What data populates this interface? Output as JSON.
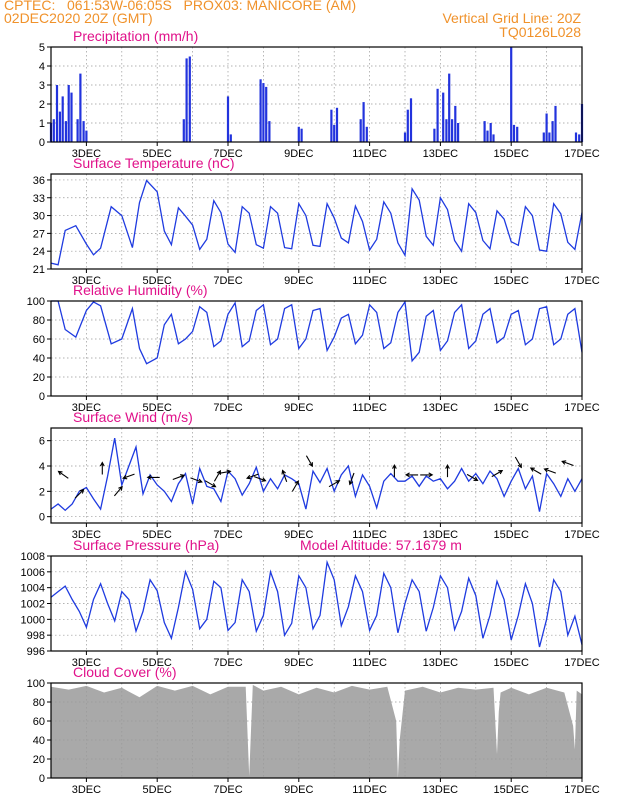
{
  "header": {
    "line1_left": "CPTEC:   061:53W-06:05S   PROX03: MANICORE (AM)",
    "line2_left": "02DEC2020 20Z (GMT)",
    "line2_right": "Vertical Grid Line: 20Z",
    "line3_right": "TQ0126L028"
  },
  "colors": {
    "header": "#f0922b",
    "title": "#e0118a",
    "line": "#1f3be0",
    "bar": "#2233dd",
    "cloud": "#a9a9a9",
    "grid": "#999999"
  },
  "date_labels": [
    "3DEC",
    "5DEC",
    "7DEC",
    "9DEC",
    "11DEC",
    "13DEC",
    "15DEC",
    "17DEC"
  ],
  "chart_data": [
    {
      "id": "precip",
      "type": "bar",
      "title": "Precipitation (mm/h)",
      "ylim": [
        0,
        5
      ],
      "yticks": [
        0,
        1,
        2,
        3,
        4,
        5
      ],
      "x_unit": "days since 02DEC2020 20Z",
      "xlim": [
        0,
        15
      ],
      "x": [
        0.0,
        0.08,
        0.17,
        0.25,
        0.33,
        0.42,
        0.5,
        0.58,
        0.75,
        0.83,
        0.92,
        1.0,
        3.75,
        3.83,
        3.92,
        5.0,
        5.08,
        5.92,
        6.0,
        6.08,
        6.17,
        7.0,
        7.08,
        7.92,
        8.0,
        8.08,
        8.75,
        8.83,
        8.92,
        10.0,
        10.08,
        10.17,
        10.83,
        10.92,
        11.08,
        11.17,
        11.25,
        11.33,
        11.42,
        11.5,
        12.25,
        12.33,
        12.42,
        12.5,
        13.0,
        13.08,
        13.17,
        13.92,
        14.0,
        14.08,
        14.17,
        14.25,
        14.83,
        14.92,
        15.0
      ],
      "values": [
        1.0,
        1.2,
        3.0,
        1.6,
        2.4,
        1.1,
        3.0,
        2.6,
        1.2,
        3.6,
        1.1,
        0.6,
        1.2,
        4.4,
        4.5,
        2.4,
        0.4,
        3.3,
        3.1,
        2.9,
        1.1,
        0.8,
        0.7,
        1.7,
        0.9,
        1.8,
        1.2,
        2.1,
        0.8,
        0.5,
        1.7,
        2.3,
        0.7,
        2.8,
        2.6,
        1.2,
        3.6,
        1.2,
        1.9,
        1.0,
        1.1,
        0.6,
        1.0,
        0.4,
        5.0,
        0.9,
        0.8,
        0.5,
        1.5,
        0.5,
        1.1,
        1.9,
        0.5,
        0.4,
        2.0
      ]
    },
    {
      "id": "temp",
      "type": "line",
      "title": "Surface Temperature (nC)",
      "ylim": [
        21,
        37
      ],
      "yticks": [
        21,
        24,
        27,
        30,
        33,
        36
      ],
      "x_unit": "days since 02DEC2020 20Z",
      "xlim": [
        0,
        15
      ],
      "x": [
        0,
        0.2,
        0.4,
        0.7,
        1.0,
        1.2,
        1.4,
        1.7,
        2.0,
        2.3,
        2.5,
        2.7,
        3.0,
        3.2,
        3.4,
        3.6,
        3.8,
        4.0,
        4.2,
        4.4,
        4.6,
        4.8,
        5.0,
        5.2,
        5.4,
        5.6,
        5.8,
        6.0,
        6.2,
        6.4,
        6.6,
        6.8,
        7.0,
        7.2,
        7.4,
        7.6,
        7.8,
        8.0,
        8.2,
        8.4,
        8.6,
        8.8,
        9.0,
        9.2,
        9.4,
        9.6,
        9.8,
        10.0,
        10.2,
        10.4,
        10.6,
        10.8,
        11.0,
        11.2,
        11.4,
        11.6,
        11.8,
        12.0,
        12.2,
        12.4,
        12.6,
        12.8,
        13.0,
        13.2,
        13.4,
        13.6,
        13.8,
        14.0,
        14.2,
        14.4,
        14.6,
        14.8,
        15.0
      ],
      "values": [
        22.0,
        21.7,
        27.5,
        28.3,
        25.2,
        23.4,
        24.5,
        31.5,
        30.0,
        24.6,
        32.2,
        35.9,
        34.0,
        27.4,
        25.1,
        31.3,
        29.9,
        28.4,
        24.3,
        26.0,
        32.5,
        30.5,
        25.2,
        23.8,
        31.5,
        30.4,
        25.1,
        24.5,
        31.5,
        30.4,
        24.6,
        24.4,
        32.0,
        30.0,
        25.0,
        24.8,
        32.0,
        29.6,
        26.2,
        25.4,
        31.6,
        29.0,
        24.2,
        26.0,
        32.3,
        30.4,
        25.4,
        23.3,
        34.5,
        32.6,
        26.5,
        25.0,
        33.0,
        31.0,
        25.8,
        24.0,
        32.0,
        30.5,
        25.8,
        24.4,
        30.8,
        29.4,
        25.6,
        25.0,
        31.5,
        30.0,
        24.2,
        24.0,
        32.0,
        30.3,
        25.5,
        24.3,
        30.5
      ]
    },
    {
      "id": "rh",
      "type": "line",
      "title": "Relative Humidity (%)",
      "ylim": [
        0,
        100
      ],
      "yticks": [
        0,
        20,
        40,
        60,
        80,
        100
      ],
      "x_unit": "days since 02DEC2020 20Z",
      "xlim": [
        0,
        15
      ],
      "x": [
        0,
        0.2,
        0.4,
        0.7,
        1.0,
        1.2,
        1.4,
        1.7,
        2.0,
        2.3,
        2.5,
        2.7,
        3.0,
        3.2,
        3.4,
        3.6,
        3.8,
        4.0,
        4.2,
        4.4,
        4.6,
        4.8,
        5.0,
        5.2,
        5.4,
        5.6,
        5.8,
        6.0,
        6.2,
        6.4,
        6.6,
        6.8,
        7.0,
        7.2,
        7.4,
        7.6,
        7.8,
        8.0,
        8.2,
        8.4,
        8.6,
        8.8,
        9.0,
        9.2,
        9.4,
        9.6,
        9.8,
        10.0,
        10.2,
        10.4,
        10.6,
        10.8,
        11.0,
        11.2,
        11.4,
        11.6,
        11.8,
        12.0,
        12.2,
        12.4,
        12.6,
        12.8,
        13.0,
        13.2,
        13.4,
        13.6,
        13.8,
        14.0,
        14.2,
        14.4,
        14.6,
        14.8,
        15.0
      ],
      "values": [
        100,
        100,
        70,
        62,
        90,
        99,
        95,
        55,
        60,
        92,
        50,
        34,
        40,
        75,
        86,
        55,
        60,
        68,
        94,
        88,
        52,
        58,
        86,
        98,
        52,
        58,
        90,
        96,
        54,
        60,
        92,
        96,
        50,
        60,
        90,
        92,
        48,
        62,
        82,
        86,
        55,
        64,
        96,
        88,
        50,
        56,
        88,
        99,
        37,
        46,
        84,
        90,
        48,
        58,
        88,
        96,
        50,
        58,
        86,
        92,
        56,
        62,
        86,
        90,
        54,
        60,
        92,
        94,
        54,
        60,
        86,
        92,
        46
      ]
    },
    {
      "id": "wind",
      "type": "line",
      "title": "Surface Wind (m/s)",
      "ylim": [
        -0.5,
        7
      ],
      "yticks": [
        0,
        2,
        4,
        6
      ],
      "x_unit": "days since 02DEC2020 20Z",
      "xlim": [
        0,
        15
      ],
      "x": [
        0,
        0.2,
        0.4,
        0.6,
        0.8,
        1.0,
        1.2,
        1.4,
        1.6,
        1.8,
        2.0,
        2.2,
        2.4,
        2.6,
        2.8,
        3.0,
        3.2,
        3.4,
        3.6,
        3.8,
        4.0,
        4.2,
        4.4,
        4.6,
        4.8,
        5.0,
        5.2,
        5.4,
        5.6,
        5.8,
        6.0,
        6.2,
        6.4,
        6.6,
        6.8,
        7.0,
        7.2,
        7.4,
        7.6,
        7.8,
        8.0,
        8.2,
        8.4,
        8.6,
        8.8,
        9.0,
        9.2,
        9.4,
        9.6,
        9.8,
        10.0,
        10.2,
        10.4,
        10.6,
        10.8,
        11.0,
        11.2,
        11.4,
        11.6,
        11.8,
        12.0,
        12.2,
        12.4,
        12.6,
        12.8,
        13.0,
        13.2,
        13.4,
        13.6,
        13.8,
        14.0,
        14.2,
        14.4,
        14.6,
        14.8,
        15.0
      ],
      "values": [
        0.6,
        1.0,
        0.5,
        1.0,
        2.0,
        2.3,
        1.4,
        0.6,
        3.2,
        6.2,
        2.5,
        4.0,
        5.5,
        1.8,
        3.3,
        2.5,
        2.0,
        1.2,
        2.6,
        3.4,
        1.0,
        3.8,
        2.4,
        2.2,
        1.2,
        3.6,
        3.0,
        1.7,
        2.6,
        3.9,
        2.0,
        3.0,
        2.2,
        3.3,
        3.0,
        2.6,
        0.6,
        3.6,
        2.7,
        3.8,
        2.0,
        3.3,
        4.0,
        1.6,
        3.3,
        2.4,
        0.7,
        2.8,
        3.4,
        2.8,
        2.8,
        3.2,
        2.4,
        3.2,
        2.8,
        3.0,
        2.2,
        2.8,
        3.8,
        2.8,
        3.4,
        2.6,
        3.6,
        3.0,
        1.6,
        2.8,
        3.8,
        2.2,
        3.2,
        0.4,
        3.4,
        2.6,
        1.6,
        3.0,
        2.0,
        3.0
      ],
      "arrows": [
        {
          "x": 0.35,
          "y": 3.3,
          "angle": 145
        },
        {
          "x": 0.8,
          "y": 1.8,
          "angle": 45
        },
        {
          "x": 1.45,
          "y": 3.8,
          "angle": 90
        },
        {
          "x": 1.9,
          "y": 2.0,
          "angle": 50
        },
        {
          "x": 2.2,
          "y": 3.2,
          "angle": 200
        },
        {
          "x": 2.9,
          "y": 3.1,
          "angle": 180
        },
        {
          "x": 3.6,
          "y": 3.1,
          "angle": 20
        },
        {
          "x": 4.1,
          "y": 2.9,
          "angle": 340
        },
        {
          "x": 4.5,
          "y": 2.6,
          "angle": 330
        },
        {
          "x": 4.7,
          "y": 3.2,
          "angle": 60
        },
        {
          "x": 4.9,
          "y": 3.5,
          "angle": 10
        },
        {
          "x": 5.7,
          "y": 3.2,
          "angle": 200
        },
        {
          "x": 5.9,
          "y": 3.0,
          "angle": 340
        },
        {
          "x": 6.6,
          "y": 3.2,
          "angle": 110
        },
        {
          "x": 6.9,
          "y": 2.4,
          "angle": 60
        },
        {
          "x": 7.3,
          "y": 4.4,
          "angle": 300
        },
        {
          "x": 8.0,
          "y": 2.6,
          "angle": 30
        },
        {
          "x": 8.5,
          "y": 3.0,
          "angle": 250
        },
        {
          "x": 9.7,
          "y": 3.6,
          "angle": 90
        },
        {
          "x": 10.2,
          "y": 3.3,
          "angle": 180
        },
        {
          "x": 10.6,
          "y": 3.3,
          "angle": 0
        },
        {
          "x": 11.2,
          "y": 3.6,
          "angle": 90
        },
        {
          "x": 11.9,
          "y": 3.1,
          "angle": 330
        },
        {
          "x": 12.6,
          "y": 3.4,
          "angle": 30
        },
        {
          "x": 13.2,
          "y": 4.3,
          "angle": 300
        },
        {
          "x": 13.7,
          "y": 3.6,
          "angle": 150
        },
        {
          "x": 14.1,
          "y": 3.6,
          "angle": 160
        },
        {
          "x": 14.6,
          "y": 4.2,
          "angle": 160
        }
      ]
    },
    {
      "id": "pres",
      "type": "line",
      "title": "Surface Pressure (hPa)",
      "annotation": "Model Altitude: 57.1679 m",
      "ylim": [
        996,
        1008
      ],
      "yticks": [
        996,
        998,
        1000,
        1002,
        1004,
        1006,
        1008
      ],
      "x_unit": "days since 02DEC2020 20Z",
      "xlim": [
        0,
        15
      ],
      "x": [
        0,
        0.2,
        0.4,
        0.6,
        0.8,
        1.0,
        1.2,
        1.4,
        1.6,
        1.8,
        2.0,
        2.2,
        2.4,
        2.6,
        2.8,
        3.0,
        3.2,
        3.4,
        3.6,
        3.8,
        4.0,
        4.2,
        4.4,
        4.6,
        4.8,
        5.0,
        5.2,
        5.4,
        5.6,
        5.8,
        6.0,
        6.2,
        6.4,
        6.6,
        6.8,
        7.0,
        7.2,
        7.4,
        7.6,
        7.8,
        8.0,
        8.2,
        8.4,
        8.6,
        8.8,
        9.0,
        9.2,
        9.4,
        9.6,
        9.8,
        10.0,
        10.2,
        10.4,
        10.6,
        10.8,
        11.0,
        11.2,
        11.4,
        11.6,
        11.8,
        12.0,
        12.2,
        12.4,
        12.6,
        12.8,
        13.0,
        13.2,
        13.4,
        13.6,
        13.8,
        14.0,
        14.2,
        14.4,
        14.6,
        14.8,
        15.0
      ],
      "values": [
        1002.8,
        1003.5,
        1004.2,
        1002.5,
        1001.0,
        999.0,
        1002.5,
        1004.5,
        1002.0,
        999.8,
        1003.5,
        1002.5,
        998.5,
        1001.0,
        1005.0,
        1003.6,
        999.6,
        997.6,
        1001.5,
        1006.0,
        1003.8,
        998.8,
        1000.0,
        1004.8,
        1004.0,
        998.6,
        999.6,
        1005.0,
        1003.5,
        998.5,
        1000.5,
        1006.0,
        1003.5,
        998.0,
        999.5,
        1005.5,
        1004.0,
        998.8,
        1000.5,
        1007.2,
        1005.0,
        999.2,
        1001.6,
        1005.5,
        1003.5,
        998.6,
        1000.5,
        1005.8,
        1004.0,
        998.3,
        1002.0,
        1005.0,
        1003.5,
        998.5,
        1001.5,
        1005.5,
        1004.0,
        998.7,
        1001.0,
        1005.2,
        1003.0,
        997.6,
        1000.5,
        1004.8,
        1002.5,
        997.4,
        1000.5,
        1004.5,
        1002.0,
        996.5,
        1000.0,
        1005.0,
        1003.5,
        998.0,
        1000.4,
        996.8
      ]
    },
    {
      "id": "cloud",
      "type": "area",
      "title": "Cloud Cover (%)",
      "ylim": [
        0,
        100
      ],
      "yticks": [
        0,
        20,
        40,
        60,
        80,
        100
      ],
      "x_unit": "days since 02DEC2020 20Z",
      "xlim": [
        0,
        15
      ],
      "x": [
        0,
        0.5,
        1.0,
        1.5,
        2.0,
        2.5,
        3.0,
        3.5,
        4.0,
        4.5,
        5.0,
        5.5,
        5.6,
        5.65,
        5.7,
        6.0,
        6.5,
        7.0,
        7.5,
        8.0,
        8.5,
        9.0,
        9.5,
        9.75,
        9.8,
        9.85,
        10.0,
        10.5,
        11.0,
        11.5,
        12.0,
        12.5,
        12.6,
        12.65,
        12.7,
        13.0,
        13.5,
        14.0,
        14.5,
        14.75,
        14.8,
        14.85,
        15.0
      ],
      "values": [
        96,
        93,
        97,
        90,
        95,
        85,
        97,
        92,
        97,
        88,
        96,
        96,
        2,
        50,
        98,
        92,
        96,
        88,
        95,
        90,
        97,
        93,
        96,
        60,
        0,
        40,
        92,
        96,
        90,
        95,
        93,
        95,
        25,
        70,
        90,
        95,
        88,
        95,
        90,
        55,
        30,
        92,
        88
      ]
    }
  ]
}
